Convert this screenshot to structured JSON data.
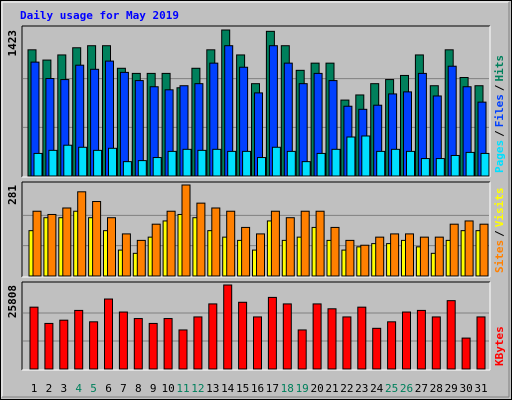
{
  "legend_separator": "/",
  "chart_data": [
    {
      "type": "bar",
      "title": "Daily usage for May 2019",
      "ylim": [
        0,
        1423
      ],
      "yticks": [
        1423
      ],
      "grid": true,
      "series": [
        {
          "name": "Hits",
          "color": "#00805c",
          "values": [
            1230,
            1130,
            1180,
            1250,
            1270,
            1270,
            1050,
            1000,
            1000,
            1000,
            860,
            1050,
            1230,
            1423,
            1180,
            900,
            1410,
            1270,
            1030,
            1100,
            1100,
            740,
            790,
            900,
            940,
            980,
            1180,
            880,
            1230,
            960,
            880
          ]
        },
        {
          "name": "Files",
          "color": "#0040ff",
          "values": [
            1110,
            950,
            940,
            1080,
            1040,
            1120,
            1010,
            930,
            870,
            840,
            880,
            900,
            1100,
            1270,
            1060,
            810,
            1270,
            1100,
            900,
            1000,
            930,
            680,
            650,
            690,
            800,
            820,
            1000,
            780,
            1070,
            870,
            720
          ]
        },
        {
          "name": "Pages",
          "color": "#00e0ff",
          "values": [
            220,
            250,
            300,
            280,
            250,
            270,
            140,
            150,
            180,
            240,
            260,
            250,
            260,
            240,
            240,
            180,
            280,
            240,
            140,
            220,
            260,
            380,
            390,
            240,
            260,
            240,
            170,
            170,
            200,
            230,
            220
          ]
        }
      ]
    },
    {
      "type": "bar",
      "ylim": [
        0,
        281
      ],
      "yticks": [
        281
      ],
      "grid": true,
      "series": [
        {
          "name": "Visits",
          "color": "#ffff00",
          "values": [
            140,
            180,
            180,
            200,
            180,
            140,
            80,
            70,
            120,
            170,
            190,
            180,
            140,
            120,
            110,
            80,
            170,
            110,
            120,
            150,
            110,
            80,
            90,
            100,
            100,
            110,
            90,
            70,
            110,
            140,
            140
          ]
        },
        {
          "name": "Sites",
          "color": "#ff8000",
          "values": [
            200,
            190,
            210,
            260,
            230,
            180,
            130,
            110,
            160,
            200,
            281,
            225,
            210,
            200,
            150,
            130,
            200,
            180,
            200,
            200,
            150,
            110,
            95,
            120,
            130,
            130,
            120,
            120,
            160,
            170,
            160
          ]
        }
      ]
    },
    {
      "type": "bar",
      "ylim": [
        0,
        25808
      ],
      "yticks": [
        25808
      ],
      "grid": true,
      "categories": [
        "1",
        "2",
        "3",
        "4",
        "5",
        "6",
        "7",
        "8",
        "9",
        "10",
        "11",
        "12",
        "13",
        "14",
        "15",
        "16",
        "17",
        "18",
        "19",
        "20",
        "21",
        "22",
        "23",
        "24",
        "25",
        "26",
        "27",
        "28",
        "29",
        "30",
        "31"
      ],
      "category_colors": [
        "#000",
        "#000",
        "#000",
        "#00805c",
        "#00805c",
        "#000",
        "#000",
        "#000",
        "#000",
        "#000",
        "#00805c",
        "#00805c",
        "#000",
        "#000",
        "#000",
        "#000",
        "#000",
        "#00805c",
        "#00805c",
        "#000",
        "#000",
        "#000",
        "#000",
        "#000",
        "#00805c",
        "#00805c",
        "#000",
        "#000",
        "#000",
        "#000",
        "#000"
      ],
      "series": [
        {
          "name": "KBytes",
          "color": "#ff0000",
          "values": [
            19000,
            14000,
            15000,
            18000,
            14500,
            21500,
            17500,
            15500,
            14000,
            15500,
            12000,
            16000,
            20000,
            25808,
            20500,
            16000,
            22000,
            20000,
            12000,
            20000,
            18500,
            16000,
            19000,
            12500,
            14500,
            17500,
            18000,
            16000,
            21000,
            9500,
            16000
          ]
        }
      ]
    }
  ]
}
